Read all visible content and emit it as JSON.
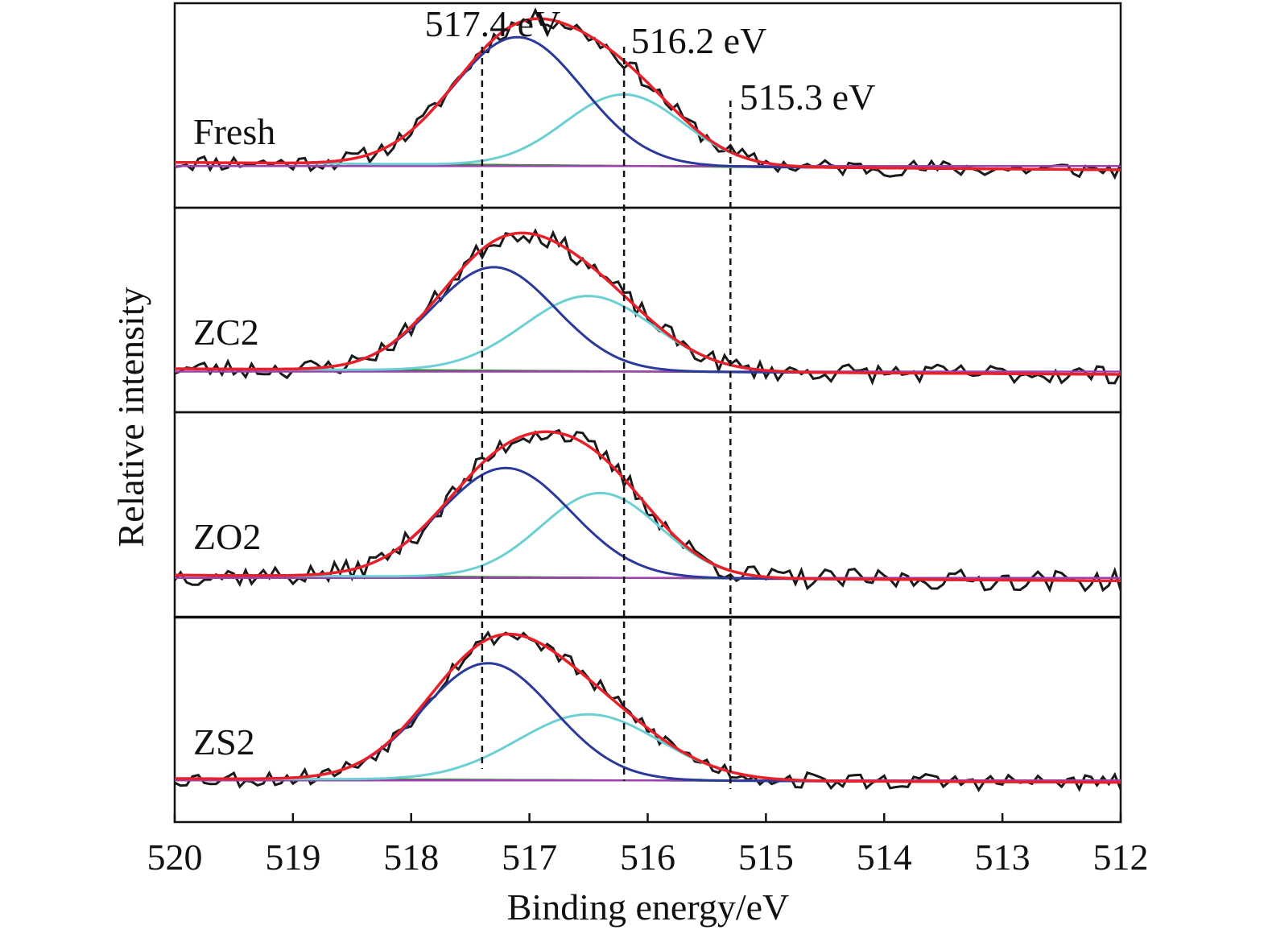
{
  "chart_data": {
    "type": "line",
    "xlabel": "Binding energy/eV",
    "ylabel": "Relative intensity",
    "xlim": [
      520,
      512
    ],
    "x_reversed": true,
    "x_ticks": [
      "520",
      "519",
      "518",
      "517",
      "516",
      "515",
      "514",
      "513",
      "512"
    ],
    "grid": false,
    "reference_lines": [
      {
        "x": 517.4,
        "label": "517.4 eV"
      },
      {
        "x": 516.2,
        "label": "516.2 eV"
      },
      {
        "x": 515.3,
        "label": "515.3 eV"
      }
    ],
    "colors": {
      "raw": "#1a1a1a",
      "envelope": "#e8202a",
      "peak1": "#2b3a9a",
      "peak2": "#6ccfd3",
      "background1": "#2e8b2e",
      "background2": "#a040b0",
      "reference": "#111111"
    },
    "component_names": [
      "Raw",
      "Envelope",
      "Peak 1",
      "Peak 2",
      "Background 1",
      "Background 2"
    ],
    "panels": [
      {
        "label": "Fresh",
        "baseline_high_be": 0.07,
        "baseline_low_be": 0.03,
        "noise_amplitude": 0.045,
        "seed": 11,
        "peaks": [
          {
            "center": 517.1,
            "height": 0.68,
            "sigma": 0.55
          },
          {
            "center": 516.2,
            "height": 0.38,
            "sigma": 0.5
          }
        ]
      },
      {
        "label": "ZC2",
        "baseline_high_be": 0.06,
        "baseline_low_be": 0.03,
        "noise_amplitude": 0.05,
        "seed": 23,
        "peaks": [
          {
            "center": 517.3,
            "height": 0.55,
            "sigma": 0.52
          },
          {
            "center": 516.5,
            "height": 0.4,
            "sigma": 0.55
          }
        ]
      },
      {
        "label": "ZO2",
        "baseline_high_be": 0.05,
        "baseline_low_be": 0.02,
        "noise_amplitude": 0.055,
        "seed": 37,
        "peaks": [
          {
            "center": 517.2,
            "height": 0.58,
            "sigma": 0.55
          },
          {
            "center": 516.4,
            "height": 0.45,
            "sigma": 0.5
          }
        ]
      },
      {
        "label": "ZS2",
        "baseline_high_be": 0.06,
        "baseline_low_be": 0.04,
        "noise_amplitude": 0.045,
        "seed": 53,
        "peaks": [
          {
            "center": 517.35,
            "height": 0.62,
            "sigma": 0.55
          },
          {
            "center": 516.5,
            "height": 0.35,
            "sigma": 0.6
          }
        ]
      }
    ]
  }
}
